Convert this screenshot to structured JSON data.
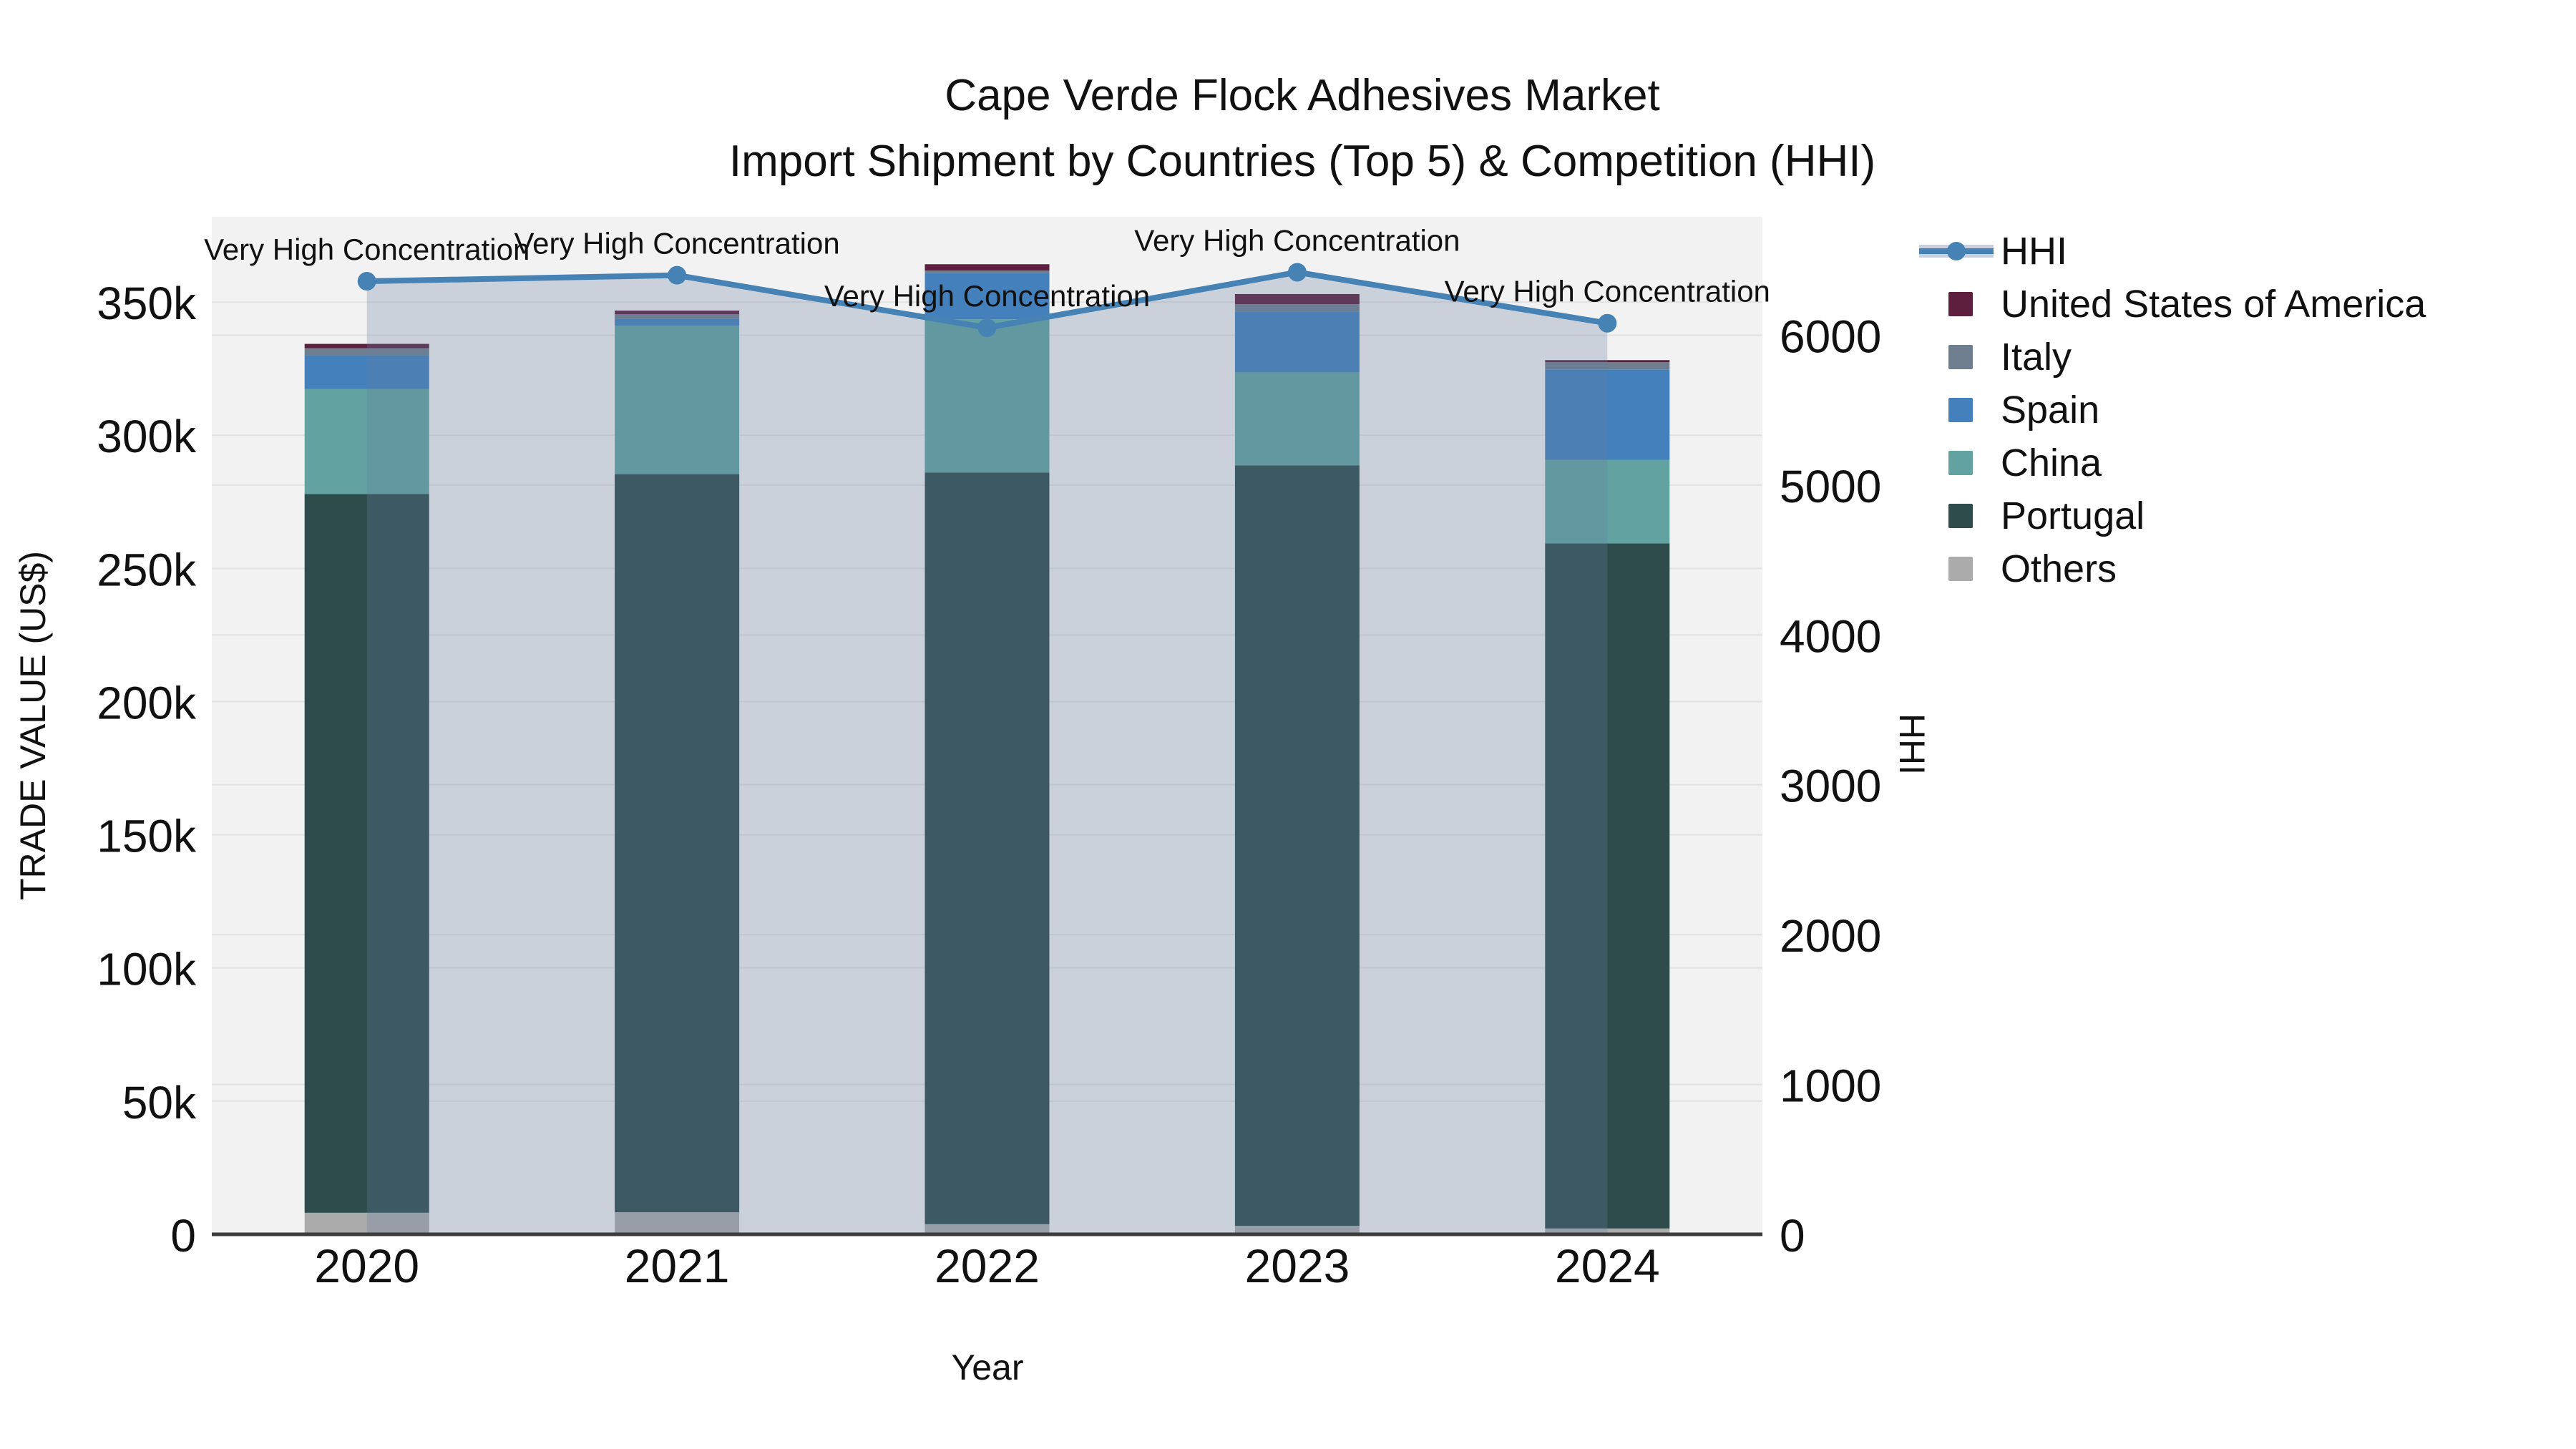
{
  "title": {
    "line1": "Cape Verde Flock Adhesives Market",
    "line2": "Import Shipment by Countries (Top 5) & Competition (HHI)"
  },
  "axes": {
    "y_left": {
      "title": "TRADE VALUE (US$)",
      "tick_labels": [
        "0",
        "50k",
        "100k",
        "150k",
        "200k",
        "250k",
        "300k",
        "350k"
      ],
      "tick_values": [
        0,
        50000,
        100000,
        150000,
        200000,
        250000,
        300000,
        350000
      ]
    },
    "y_right": {
      "title": "HHI",
      "tick_labels": [
        "0",
        "1000",
        "2000",
        "3000",
        "4000",
        "5000",
        "6000"
      ],
      "tick_values": [
        0,
        1000,
        2000,
        3000,
        4000,
        5000,
        6000
      ]
    },
    "x": {
      "title": "Year",
      "categories": [
        "2020",
        "2021",
        "2022",
        "2023",
        "2024"
      ]
    }
  },
  "legend": [
    {
      "label": "HHI",
      "color": "#4682b4",
      "type": "line"
    },
    {
      "label": "United States of America",
      "color": "#5e1f3e",
      "type": "square"
    },
    {
      "label": "Italy",
      "color": "#6e7e8e",
      "type": "square"
    },
    {
      "label": "Spain",
      "color": "#4380bc",
      "type": "square"
    },
    {
      "label": "China",
      "color": "#62a2a0",
      "type": "square"
    },
    {
      "label": "Portugal",
      "color": "#2e4c4b",
      "type": "square"
    },
    {
      "label": "Others",
      "color": "#ababab",
      "type": "square"
    }
  ],
  "chart_data": {
    "type": "bar",
    "subtype": "stacked-bars-with-line",
    "categories": [
      "2020",
      "2021",
      "2022",
      "2023",
      "2024"
    ],
    "series": [
      {
        "name": "Others",
        "color": "#ababab",
        "values": [
          8100,
          8300,
          3800,
          3200,
          2200
        ]
      },
      {
        "name": "Portugal",
        "color": "#2e4c4b",
        "values": [
          269800,
          277100,
          282200,
          285500,
          257200
        ]
      },
      {
        "name": "China",
        "color": "#62a2a0",
        "values": [
          39500,
          55700,
          57500,
          34900,
          31400
        ]
      },
      {
        "name": "Spain",
        "color": "#4380bc",
        "values": [
          12600,
          2700,
          17500,
          22900,
          33900
        ]
      },
      {
        "name": "Italy",
        "color": "#6e7e8e",
        "values": [
          2700,
          1600,
          800,
          2700,
          2700
        ]
      },
      {
        "name": "United States of America",
        "color": "#5e1f3e",
        "values": [
          1600,
          1400,
          2400,
          3800,
          800
        ]
      }
    ],
    "bar_totals": [
      334300,
      346800,
      364200,
      353000,
      328200
    ],
    "line_series": {
      "name": "HHI",
      "axis": "right",
      "color": "#4682b4",
      "fill_color": "rgba(100,125,160,0.28)",
      "values": [
        6360,
        6400,
        6050,
        6420,
        6080
      ]
    },
    "annotations": [
      {
        "x": "2020",
        "text": "Very High Concentration"
      },
      {
        "x": "2021",
        "text": "Very High Concentration"
      },
      {
        "x": "2022",
        "text": "Very High Concentration"
      },
      {
        "x": "2023",
        "text": "Very High Concentration"
      },
      {
        "x": "2024",
        "text": "Very High Concentration"
      }
    ],
    "title": "Cape Verde Flock Adhesives Market Import Shipment by Countries (Top 5) & Competition (HHI)",
    "xlabel": "Year",
    "ylabel": "TRADE VALUE (US$)",
    "ylabel_right": "HHI",
    "ylim_left": [
      0,
      382000
    ],
    "ylim_right": [
      0,
      6790
    ],
    "grid": true,
    "legend_position": "right",
    "plot_bg": "#f2f2f2",
    "grid_color": "#e2e2e2",
    "axis_line_color": "#3b3b3b"
  }
}
